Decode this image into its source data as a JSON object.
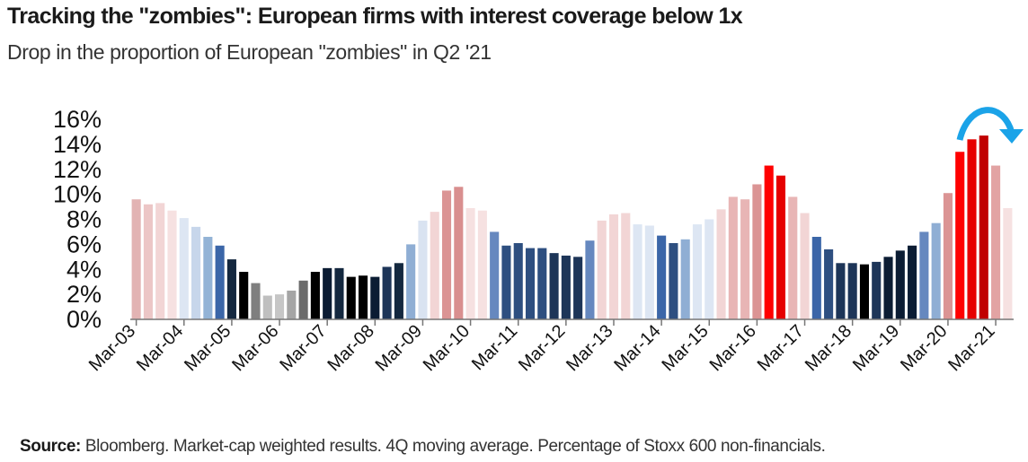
{
  "title": "Tracking the \"zombies\": European firms with interest coverage below 1x",
  "subtitle": "Drop in the proportion of European \"zombies\" in Q2 '21",
  "source": {
    "label": "Source:",
    "text": " Bloomberg. Market-cap weighted results. 4Q moving average. Percentage of Stoxx 600 non-financials."
  },
  "annotation": {
    "icon": "curved-down-arrow-icon",
    "color": "#1ba3e8"
  },
  "chart_data": {
    "type": "bar",
    "title": "Tracking the \"zombies\": European firms with interest coverage below 1x",
    "xlabel": "",
    "ylabel": "",
    "ylim": [
      0,
      16
    ],
    "y_ticks": [
      "0%",
      "2%",
      "4%",
      "6%",
      "8%",
      "10%",
      "12%",
      "14%",
      "16%"
    ],
    "x_tick_labels": [
      "Mar-03",
      "Mar-04",
      "Mar-05",
      "Mar-06",
      "Mar-07",
      "Mar-08",
      "Mar-09",
      "Mar-10",
      "Mar-11",
      "Mar-12",
      "Mar-13",
      "Mar-14",
      "Mar-15",
      "Mar-16",
      "Mar-17",
      "Mar-18",
      "Mar-19",
      "Mar-20",
      "Mar-21"
    ],
    "categories": [
      "Mar-03",
      "Jun-03",
      "Sep-03",
      "Dec-03",
      "Mar-04",
      "Jun-04",
      "Sep-04",
      "Dec-04",
      "Mar-05",
      "Jun-05",
      "Sep-05",
      "Dec-05",
      "Mar-06",
      "Jun-06",
      "Sep-06",
      "Dec-06",
      "Mar-07",
      "Jun-07",
      "Sep-07",
      "Dec-07",
      "Mar-08",
      "Jun-08",
      "Sep-08",
      "Dec-08",
      "Mar-09",
      "Jun-09",
      "Sep-09",
      "Dec-09",
      "Mar-10",
      "Jun-10",
      "Sep-10",
      "Dec-10",
      "Mar-11",
      "Jun-11",
      "Sep-11",
      "Dec-11",
      "Mar-12",
      "Jun-12",
      "Sep-12",
      "Dec-12",
      "Mar-13",
      "Jun-13",
      "Sep-13",
      "Dec-13",
      "Mar-14",
      "Jun-14",
      "Sep-14",
      "Dec-14",
      "Mar-15",
      "Jun-15",
      "Sep-15",
      "Dec-15",
      "Mar-16",
      "Jun-16",
      "Sep-16",
      "Dec-16",
      "Mar-17",
      "Jun-17",
      "Sep-17",
      "Dec-17",
      "Mar-18",
      "Jun-18",
      "Sep-18",
      "Dec-18",
      "Mar-19",
      "Jun-19",
      "Sep-19",
      "Dec-19",
      "Mar-20",
      "Jun-20",
      "Sep-20",
      "Dec-20",
      "Mar-21",
      "Jun-21"
    ],
    "values": [
      9.6,
      9.2,
      9.3,
      8.7,
      8.1,
      7.4,
      6.6,
      5.9,
      4.8,
      3.8,
      2.9,
      1.9,
      2.0,
      2.3,
      3.1,
      3.8,
      4.1,
      4.1,
      3.4,
      3.5,
      3.4,
      4.2,
      4.5,
      6.0,
      7.9,
      8.6,
      10.3,
      10.6,
      8.9,
      8.7,
      7.0,
      5.9,
      6.1,
      5.7,
      5.7,
      5.3,
      5.1,
      5.0,
      6.3,
      7.9,
      8.4,
      8.5,
      7.6,
      7.5,
      6.7,
      6.1,
      6.4,
      7.6,
      8.0,
      8.8,
      9.8,
      9.6,
      10.8,
      12.3,
      11.5,
      9.8,
      8.5,
      6.6,
      5.6,
      4.5,
      4.5,
      4.4,
      4.6,
      5.0,
      5.5,
      5.9,
      7.0,
      7.7,
      10.1,
      13.4,
      14.4,
      14.7,
      12.3,
      8.9
    ],
    "colors": [
      "#e2b3b3",
      "#ecc6c6",
      "#f2d5d5",
      "#f6e1e1",
      "#dde6f3",
      "#c7d6eb",
      "#93b3d6",
      "#3b66a8",
      "#14283f",
      "#000000",
      "#7f7f7f",
      "#bfbfbf",
      "#c6c6c6",
      "#a5a5a5",
      "#6b6b6b",
      "#000000",
      "#0b1c33",
      "#14283f",
      "#000000",
      "#000000",
      "#0b1c33",
      "#1d3558",
      "#14283f",
      "#8faed4",
      "#d9e3f1",
      "#f2d5d5",
      "#db9494",
      "#d98f8f",
      "#f6e1e1",
      "#f6e1e1",
      "#6688bf",
      "#2e4f80",
      "#2e4f80",
      "#2e4f80",
      "#2e4f80",
      "#1d3558",
      "#1d3558",
      "#1d3558",
      "#6688bf",
      "#f2d5d5",
      "#f2d5d5",
      "#f2d5d5",
      "#dde6f3",
      "#dde6f3",
      "#3b66a8",
      "#2e4f80",
      "#8faed4",
      "#dde6f3",
      "#dde6f3",
      "#f2d5d5",
      "#e8b5b5",
      "#e8b5b5",
      "#db9494",
      "#ff0000",
      "#e60000",
      "#e8b5b5",
      "#f2d5d5",
      "#3b66a8",
      "#2e4f80",
      "#1d3558",
      "#1d3558",
      "#000000",
      "#1d3558",
      "#0b1c33",
      "#0b1c33",
      "#0b1c33",
      "#6688bf",
      "#8faed4",
      "#db9494",
      "#ff0000",
      "#e60000",
      "#c00000",
      "#e2a3a3",
      "#f6e1e1"
    ]
  }
}
